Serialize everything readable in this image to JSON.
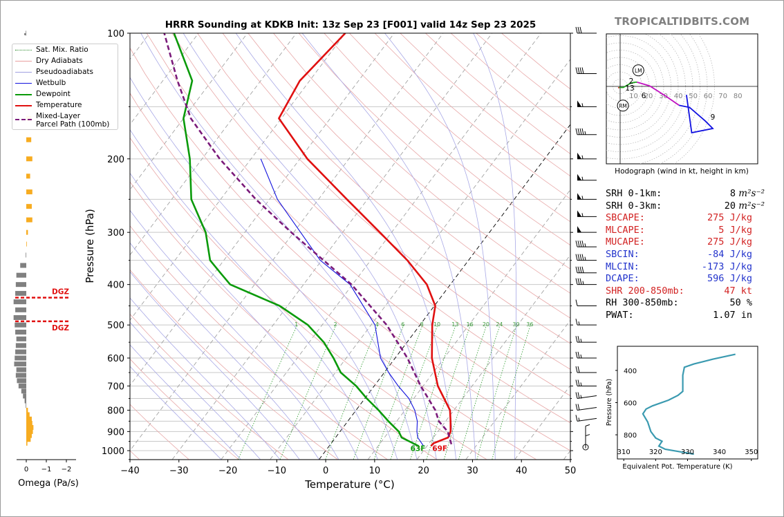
{
  "title": "HRRR Sounding at KDKB Init: 13z Sep 23 [F001] valid 14z Sep 23 2025",
  "watermark": "TROPICALTIDBITS.COM",
  "skewt": {
    "xlabel": "Temperature (°C)",
    "ylabel": "Pressure (hPa)",
    "x_ticks": [
      "−40",
      "−30",
      "−20",
      "−10",
      "0",
      "10",
      "20",
      "30",
      "40",
      "50"
    ],
    "y_ticks": [
      "100",
      "200",
      "300",
      "400",
      "500",
      "600",
      "700",
      "800",
      "900",
      "1000"
    ],
    "mixing_ratio_labels": [
      "1",
      "2",
      "4",
      "6",
      "8",
      "10",
      "13",
      "16",
      "20",
      "24",
      "30",
      "36"
    ],
    "surface_temp_label": "69F",
    "surface_dewpoint_label": "63F"
  },
  "legend": {
    "items": [
      {
        "label": "Sat. Mix. Ratio",
        "color": "#2a8a2a",
        "style": "dotted"
      },
      {
        "label": "Dry Adiabats",
        "color": "#e8a0a0",
        "style": "solid"
      },
      {
        "label": "Pseudoadiabats",
        "color": "#a0a0e0",
        "style": "solid"
      },
      {
        "label": "Wetbulb",
        "color": "#1010dd",
        "style": "solid"
      },
      {
        "label": "Dewpoint",
        "color": "#0a9a0a",
        "style": "thick"
      },
      {
        "label": "Temperature",
        "color": "#e01010",
        "style": "thick"
      },
      {
        "label": "Mixed-Layer Parcel Path (100mb)",
        "line1": "Mixed-Layer",
        "line2": "Parcel Path (100mb)",
        "color": "#7a1a7a",
        "style": "dashed"
      }
    ]
  },
  "omega": {
    "xlabel": "Omega (Pa/s)",
    "x_ticks": [
      "0",
      "−1",
      "−2"
    ],
    "dgz_label": "DGZ"
  },
  "hodograph": {
    "caption": "Hodograph (wind in kt, height in km)",
    "ring_labels": [
      "10",
      "20",
      "30",
      "40",
      "50",
      "60",
      "70",
      "80"
    ],
    "height_labels": [
      "1",
      "3",
      "6",
      "9"
    ],
    "lm_label": "LM",
    "rm_label": "RM",
    "height_2": "2",
    "height_13": "13"
  },
  "indices": [
    {
      "label": "SRH 0-1km:",
      "value": "8",
      "unit": "m²s⁻²",
      "color": "#000000"
    },
    {
      "label": "SRH 0-3km:",
      "value": "20",
      "unit": "m²s⁻²",
      "color": "#000000"
    },
    {
      "label": "SBCAPE:",
      "value": "275 J/kg",
      "color": "#d22222"
    },
    {
      "label": "MLCAPE:",
      "value": "5 J/kg",
      "color": "#d22222"
    },
    {
      "label": "MUCAPE:",
      "value": "275 J/kg",
      "color": "#d22222"
    },
    {
      "label": "SBCIN:",
      "value": "-84 J/kg",
      "color": "#2233cc"
    },
    {
      "label": "MLCIN:",
      "value": "-173 J/kg",
      "color": "#2233cc"
    },
    {
      "label": "DCAPE:",
      "value": "596 J/kg",
      "color": "#2233cc"
    },
    {
      "label": "SHR 200-850mb:",
      "value": "47 kt",
      "color": "#d22222"
    },
    {
      "label": "RH 300-850mb:",
      "value": "50 %",
      "color": "#000000"
    },
    {
      "label": "PWAT:",
      "value": "1.07 in",
      "color": "#000000"
    }
  ],
  "theta_e": {
    "xlabel": "Equivalent Pot. Temperature (K)",
    "ylabel": "Pressure (hPa)",
    "x_ticks": [
      "310",
      "320",
      "330",
      "340",
      "350"
    ],
    "y_ticks": [
      "400",
      "600",
      "800"
    ]
  },
  "chart_data": [
    {
      "type": "line",
      "name": "skew-t",
      "title": "HRRR Sounding at KDKB Init: 13z Sep 23 [F001] valid 14z Sep 23 2025",
      "xlabel": "Temperature (°C)",
      "ylabel": "Pressure (hPa)",
      "xlim": [
        -40,
        50
      ],
      "ylim": [
        1050,
        100
      ],
      "series": [
        {
          "name": "Temperature",
          "p": [
            975,
            960,
            930,
            900,
            850,
            800,
            700,
            600,
            500,
            450,
            400,
            350,
            300,
            250,
            200,
            160,
            130,
            100
          ],
          "t": [
            20.8,
            20.9,
            23.0,
            22.6,
            21.0,
            19.2,
            13.0,
            7.5,
            2.5,
            0.2,
            -4.8,
            -12.5,
            -22.4,
            -34.2,
            -48.5,
            -60.5,
            -62.0,
            -60.0
          ]
        },
        {
          "name": "Dewpoint",
          "p": [
            975,
            930,
            900,
            850,
            800,
            750,
            700,
            650,
            600,
            550,
            500,
            450,
            400,
            375,
            350,
            300,
            250,
            200,
            160,
            130,
            100
          ],
          "t": [
            18.3,
            13.5,
            12.0,
            8.3,
            4.6,
            0.4,
            -3.7,
            -8.9,
            -12.6,
            -17.0,
            -22.9,
            -31.6,
            -45.0,
            -48.8,
            -52.8,
            -58.0,
            -66.0,
            -72.5,
            -80.0,
            -84.0,
            -95.0
          ]
        },
        {
          "name": "Wetbulb",
          "p": [
            975,
            930,
            900,
            850,
            800,
            750,
            700,
            650,
            600,
            500,
            400,
            350,
            300,
            250,
            200
          ],
          "t": [
            19.3,
            16.8,
            15.7,
            14.2,
            12.0,
            9.0,
            4.9,
            0.9,
            -3.0,
            -9.2,
            -20.5,
            -30.3,
            -38.6,
            -48.4,
            -58.0
          ]
        },
        {
          "name": "Mixed-Layer Parcel Path (100mb)",
          "p": [
            965,
            900,
            850,
            800,
            700,
            600,
            500,
            400,
            300,
            250,
            200,
            160,
            130,
            100
          ],
          "t": [
            24.7,
            22.0,
            18.6,
            16.2,
            9.5,
            2.5,
            -6.8,
            -20.2,
            -40.5,
            -52.8,
            -66.4,
            -78.5,
            -87.0,
            -97.0
          ]
        }
      ]
    },
    {
      "type": "bar",
      "name": "omega",
      "xlabel": "Omega (Pa/s)",
      "dgz_pressures": [
        430,
        490
      ],
      "p": [
        960,
        940,
        920,
        900,
        880,
        860,
        840,
        820,
        800,
        780,
        760,
        740,
        720,
        700,
        680,
        660,
        640,
        620,
        600,
        580,
        560,
        540,
        520,
        500,
        480,
        460,
        440,
        420,
        400,
        380,
        360,
        340,
        320,
        300,
        280,
        260,
        240,
        220,
        200,
        180,
        160,
        150,
        140,
        100
      ],
      "values": [
        0.1,
        0.4,
        0.5,
        0.6,
        0.65,
        0.55,
        0.5,
        0.3,
        0.15,
        -0.05,
        -0.15,
        -0.3,
        -0.45,
        -0.7,
        -0.85,
        -0.95,
        -0.9,
        -1.1,
        -1.05,
        -1.0,
        -0.95,
        -0.9,
        -1.0,
        -1.05,
        -1.15,
        -1.0,
        -1.15,
        -1.0,
        -0.95,
        -0.9,
        -0.55,
        -0.05,
        0.05,
        0.15,
        0.55,
        0.5,
        0.55,
        0.35,
        0.55,
        0.45,
        0.45,
        0.15,
        0.1,
        -0.05
      ]
    },
    {
      "type": "line",
      "name": "hodograph",
      "title": "Hodograph (wind in kt, height in km)",
      "units": "kt",
      "series": [
        {
          "name": "0-1km",
          "color": "#e01010",
          "u": [
            -1.8,
            -1.0
          ],
          "v": [
            -1.6,
            -1.0
          ]
        },
        {
          "name": "1-3km",
          "color": "#1aa01a",
          "u": [
            -1.0,
            3.0,
            10.0,
            14.5
          ],
          "v": [
            -1.0,
            -1.0,
            3.0,
            4.0
          ]
        },
        {
          "name": "3-6km",
          "color": "#1aa01a",
          "u": [
            14.5,
            16.0
          ],
          "v": [
            4.0,
            4.0
          ]
        },
        {
          "name": "6-9km",
          "color": "#c010c0",
          "u": [
            16.0,
            28.0,
            43.0,
            56.0
          ],
          "v": [
            4.0,
            0.5,
            -9.0,
            -18.0
          ]
        },
        {
          "name": "9-13km",
          "color": "#1010e0",
          "u": [
            56.0,
            66.0,
            81.0,
            88.0,
            68.0,
            63.0
          ],
          "v": [
            -18.0,
            -20.0,
            -33.0,
            -40.0,
            -44.0,
            -8.0
          ]
        }
      ],
      "storm_motion": {
        "LM": [
          12.0,
          10.0
        ],
        "RM": [
          2.0,
          -13.0
        ]
      }
    },
    {
      "type": "line",
      "name": "theta-e",
      "xlabel": "Equivalent Pot. Temperature (K)",
      "ylabel": "Pressure (hPa)",
      "xlim": [
        308,
        352
      ],
      "ylim": [
        950,
        250
      ],
      "x": [
        332.0,
        329.0,
        323.0,
        321.0,
        322.0,
        320.0,
        318.5,
        317.5,
        316.0,
        317.0,
        319.0,
        324.0,
        327.0,
        328.5,
        328.5,
        328.5,
        329.0,
        332.0,
        338.0,
        345.0
      ],
      "y": [
        920,
        910,
        890,
        870,
        840,
        820,
        780,
        720,
        670,
        640,
        620,
        585,
        555,
        530,
        480,
        430,
        380,
        360,
        330,
        300
      ]
    }
  ]
}
